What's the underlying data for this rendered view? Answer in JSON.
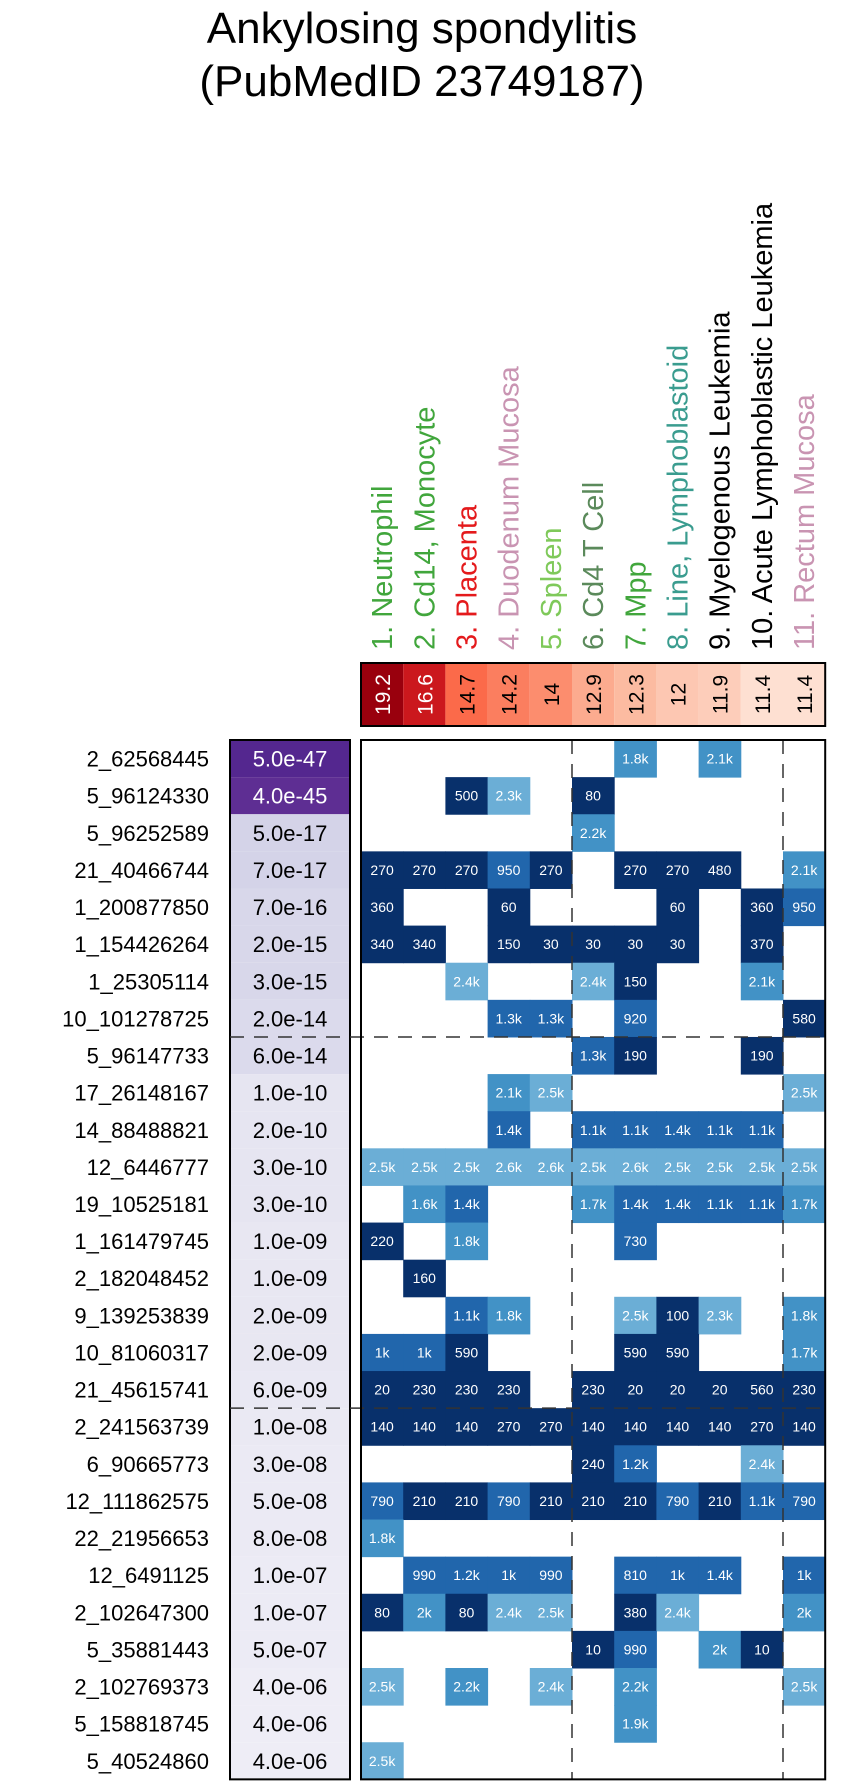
{
  "chart_data": {
    "type": "heatmap",
    "title_line1": "Ankylosing spondylitis",
    "title_line2": "(PubMedID 23749187)",
    "columns": [
      {
        "label": "1. Neutrophil",
        "color": "#41a63c",
        "score": "19.2",
        "score_color": "#99000d"
      },
      {
        "label": "2. Cd14, Monocyte",
        "color": "#41a63c",
        "score": "16.6",
        "score_color": "#cb181d"
      },
      {
        "label": "3. Placenta",
        "color": "#e41a1c",
        "score": "14.7",
        "score_color": "#fb6a4a"
      },
      {
        "label": "4. Duodenum Mucosa",
        "color": "#c994b2",
        "score": "14.2",
        "score_color": "#fb7e5f"
      },
      {
        "label": "5. Spleen",
        "color": "#7fc95a",
        "score": "14",
        "score_color": "#fc8d6e"
      },
      {
        "label": "6. Cd4 T Cell",
        "color": "#5b8a5b",
        "score": "12.9",
        "score_color": "#fcab8f"
      },
      {
        "label": "7. Mpp",
        "color": "#41a63c",
        "score": "12.3",
        "score_color": "#fcbba1"
      },
      {
        "label": "8. Line, Lymphoblastoid",
        "color": "#3a9c8f",
        "score": "12",
        "score_color": "#fdc7b2"
      },
      {
        "label": "9. Myelogenous Leukemia",
        "color": "#000000",
        "score": "11.9",
        "score_color": "#fdcdba"
      },
      {
        "label": "10. Acute Lymphoblastic Leukemia",
        "color": "#000000",
        "score": "11.4",
        "score_color": "#fee0d2"
      },
      {
        "label": "11. Rectum Mucosa",
        "color": "#c994b2",
        "score": "11.4",
        "score_color": "#fee0d2"
      }
    ],
    "rows": [
      {
        "snp": "2_62568445",
        "pvalue": "5.0e-47",
        "pcolor": "#54278f",
        "pvtext": "#ffffff",
        "cells": [
          "",
          "",
          "",
          "",
          "",
          "",
          "1.8k",
          "",
          "2.1k",
          "",
          ""
        ]
      },
      {
        "snp": "5_96124330",
        "pvalue": "4.0e-45",
        "pcolor": "#5e2e93",
        "pvtext": "#ffffff",
        "cells": [
          "",
          "",
          "500",
          "2.3k",
          "",
          "80",
          "",
          "",
          "",
          "",
          ""
        ]
      },
      {
        "snp": "5_96252589",
        "pvalue": "5.0e-17",
        "pcolor": "#d4d3e8",
        "pvtext": "#000000",
        "cells": [
          "",
          "",
          "",
          "",
          "",
          "2.2k",
          "",
          "",
          "",
          "",
          ""
        ]
      },
      {
        "snp": "21_40466744",
        "pvalue": "7.0e-17",
        "pcolor": "#d4d3e8",
        "pvtext": "#000000",
        "cells": [
          "270",
          "270",
          "270",
          "950",
          "270",
          "",
          "270",
          "270",
          "480",
          "",
          "2.1k"
        ]
      },
      {
        "snp": "1_200877850",
        "pvalue": "7.0e-16",
        "pcolor": "#d8d7ea",
        "pvtext": "#000000",
        "cells": [
          "360",
          "",
          "",
          "60",
          "",
          "",
          "",
          "60",
          "",
          "360",
          "950"
        ]
      },
      {
        "snp": "1_154426264",
        "pvalue": "2.0e-15",
        "pcolor": "#d8d7ea",
        "pvtext": "#000000",
        "cells": [
          "340",
          "340",
          "",
          "150",
          "30",
          "30",
          "30",
          "30",
          "",
          "370",
          ""
        ]
      },
      {
        "snp": "1_25305114",
        "pvalue": "3.0e-15",
        "pcolor": "#d8d7ea",
        "pvtext": "#000000",
        "cells": [
          "",
          "",
          "2.4k",
          "",
          "",
          "2.4k",
          "150",
          "",
          "",
          "2.1k",
          ""
        ]
      },
      {
        "snp": "10_101278725",
        "pvalue": "2.0e-14",
        "pcolor": "#dbdaec",
        "pvtext": "#000000",
        "cells": [
          "",
          "",
          "",
          "1.3k",
          "1.3k",
          "",
          "920",
          "",
          "",
          "",
          "580"
        ]
      },
      {
        "snp": "5_96147733",
        "pvalue": "6.0e-14",
        "pcolor": "#dbdaec",
        "pvtext": "#000000",
        "cells": [
          "",
          "",
          "",
          "",
          "",
          "1.3k",
          "190",
          "",
          "",
          "190",
          ""
        ]
      },
      {
        "snp": "17_26148167",
        "pvalue": "1.0e-10",
        "pcolor": "#e6e5f1",
        "pvtext": "#000000",
        "cells": [
          "",
          "",
          "",
          "2.1k",
          "2.5k",
          "",
          "",
          "",
          "",
          "",
          "2.5k"
        ]
      },
      {
        "snp": "14_88488821",
        "pvalue": "2.0e-10",
        "pcolor": "#e6e5f1",
        "pvtext": "#000000",
        "cells": [
          "",
          "",
          "",
          "1.4k",
          "",
          "1.1k",
          "1.1k",
          "1.4k",
          "1.1k",
          "1.1k",
          ""
        ]
      },
      {
        "snp": "12_6446777",
        "pvalue": "3.0e-10",
        "pcolor": "#e6e5f1",
        "pvtext": "#000000",
        "cells": [
          "2.5k",
          "2.5k",
          "2.5k",
          "2.6k",
          "2.6k",
          "2.5k",
          "2.6k",
          "2.5k",
          "2.5k",
          "2.5k",
          "2.5k"
        ]
      },
      {
        "snp": "19_10525181",
        "pvalue": "3.0e-10",
        "pcolor": "#e6e5f1",
        "pvtext": "#000000",
        "cells": [
          "",
          "1.6k",
          "1.4k",
          "",
          "",
          "1.7k",
          "1.4k",
          "1.4k",
          "1.1k",
          "1.1k",
          "1.7k"
        ]
      },
      {
        "snp": "1_161479745",
        "pvalue": "1.0e-09",
        "pcolor": "#e8e7f2",
        "pvtext": "#000000",
        "cells": [
          "220",
          "",
          "1.8k",
          "",
          "",
          "",
          "730",
          "",
          "",
          "",
          ""
        ]
      },
      {
        "snp": "2_182048452",
        "pvalue": "1.0e-09",
        "pcolor": "#e8e7f2",
        "pvtext": "#000000",
        "cells": [
          "",
          "160",
          "",
          "",
          "",
          "",
          "",
          "",
          "",
          "",
          ""
        ]
      },
      {
        "snp": "9_139253839",
        "pvalue": "2.0e-09",
        "pcolor": "#e8e7f2",
        "pvtext": "#000000",
        "cells": [
          "",
          "",
          "1.1k",
          "1.8k",
          "",
          "",
          "2.5k",
          "100",
          "2.3k",
          "",
          "1.8k"
        ]
      },
      {
        "snp": "10_81060317",
        "pvalue": "2.0e-09",
        "pcolor": "#e8e7f2",
        "pvtext": "#000000",
        "cells": [
          "1k",
          "1k",
          "590",
          "",
          "",
          "",
          "590",
          "590",
          "",
          "",
          "1.7k"
        ]
      },
      {
        "snp": "21_45615741",
        "pvalue": "6.0e-09",
        "pcolor": "#e9e8f3",
        "pvtext": "#000000",
        "cells": [
          "20",
          "230",
          "230",
          "230",
          "",
          "230",
          "20",
          "20",
          "20",
          "560",
          "230"
        ]
      },
      {
        "snp": "2_241563739",
        "pvalue": "1.0e-08",
        "pcolor": "#eae9f3",
        "pvtext": "#000000",
        "cells": [
          "140",
          "140",
          "140",
          "270",
          "270",
          "140",
          "140",
          "140",
          "140",
          "270",
          "140"
        ]
      },
      {
        "snp": "6_90665773",
        "pvalue": "3.0e-08",
        "pcolor": "#ebeaf4",
        "pvtext": "#000000",
        "cells": [
          "",
          "",
          "",
          "",
          "",
          "240",
          "1.2k",
          "",
          "",
          "2.4k",
          ""
        ]
      },
      {
        "snp": "12_111862575",
        "pvalue": "5.0e-08",
        "pcolor": "#ebeaf4",
        "pvtext": "#000000",
        "cells": [
          "790",
          "210",
          "210",
          "790",
          "210",
          "210",
          "210",
          "790",
          "210",
          "1.1k",
          "790"
        ]
      },
      {
        "snp": "22_21956653",
        "pvalue": "8.0e-08",
        "pcolor": "#ebeaf4",
        "pvtext": "#000000",
        "cells": [
          "1.8k",
          "",
          "",
          "",
          "",
          "",
          "",
          "",
          "",
          "",
          ""
        ]
      },
      {
        "snp": "12_6491125",
        "pvalue": "1.0e-07",
        "pcolor": "#ecebf5",
        "pvtext": "#000000",
        "cells": [
          "",
          "990",
          "1.2k",
          "1k",
          "990",
          "",
          "810",
          "1k",
          "1.4k",
          "",
          "1k"
        ]
      },
      {
        "snp": "2_102647300",
        "pvalue": "1.0e-07",
        "pcolor": "#ecebf5",
        "pvtext": "#000000",
        "cells": [
          "80",
          "2k",
          "80",
          "2.4k",
          "2.5k",
          "",
          "380",
          "2.4k",
          "",
          "",
          "2k"
        ]
      },
      {
        "snp": "5_35881443",
        "pvalue": "5.0e-07",
        "pcolor": "#ecebf5",
        "pvtext": "#000000",
        "cells": [
          "",
          "",
          "",
          "",
          "",
          "10",
          "990",
          "",
          "2k",
          "10",
          ""
        ]
      },
      {
        "snp": "2_102769373",
        "pvalue": "4.0e-06",
        "pcolor": "#eeedf6",
        "pvtext": "#000000",
        "cells": [
          "2.5k",
          "",
          "2.2k",
          "",
          "2.4k",
          "",
          "2.2k",
          "",
          "",
          "",
          "2.5k"
        ]
      },
      {
        "snp": "5_158818745",
        "pvalue": "4.0e-06",
        "pcolor": "#eeedf6",
        "pvtext": "#000000",
        "cells": [
          "",
          "",
          "",
          "",
          "",
          "",
          "1.9k",
          "",
          "",
          "",
          ""
        ]
      },
      {
        "snp": "5_40524860",
        "pvalue": "4.0e-06",
        "pcolor": "#eeedf6",
        "pvtext": "#000000",
        "cells": [
          "2.5k",
          "",
          "",
          "",
          "",
          "",
          "",
          "",
          "",
          "",
          ""
        ]
      }
    ],
    "horizontal_dividers_after_row": [
      7,
      17
    ],
    "vertical_dividers_after_col": [
      4,
      9
    ],
    "cell_colors": {
      "near": "#08306b",
      "mid": "#2166ac",
      "far": "#4292c6",
      "farthest": "#6baed6"
    }
  }
}
